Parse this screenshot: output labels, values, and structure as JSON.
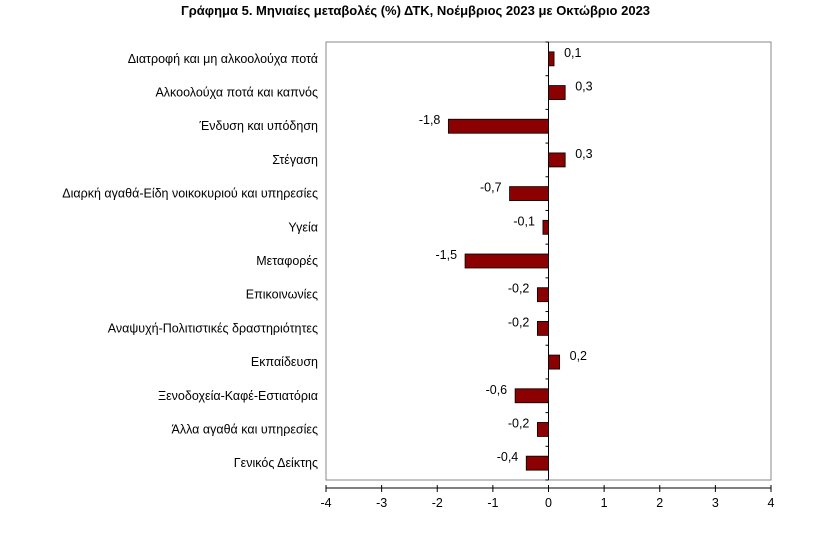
{
  "chart_data": {
    "type": "bar",
    "orientation": "horizontal",
    "title": "Γράφημα 5. Μηνιαίες μεταβολές (%) ΔΤΚ, Νοέμβριος 2023 με Οκτώβριο 2023",
    "categories": [
      "Διατροφή και μη αλκοολούχα ποτά",
      "Αλκοολούχα ποτά και καπνός",
      "Ένδυση και υπόδηση",
      "Στέγαση",
      "Διαρκή αγαθά-Είδη νοικοκυριού και υπηρεσίες",
      "Υγεία",
      "Μεταφορές",
      "Επικοινωνίες",
      "Αναψυχή-Πολιτιστικές δραστηριότητες",
      "Εκπαίδευση",
      "Ξενοδοχεία-Καφέ-Εστιατόρια",
      "Άλλα αγαθά και υπηρεσίες",
      "Γενικός Δείκτης"
    ],
    "values": [
      0.1,
      0.3,
      -1.8,
      0.3,
      -0.7,
      -0.1,
      -1.5,
      -0.2,
      -0.2,
      0.2,
      -0.6,
      -0.2,
      -0.4
    ],
    "value_labels": [
      "0,1",
      "0,3",
      "-1,8",
      "0,3",
      "-0,7",
      "-0,1",
      "-1,5",
      "-0,2",
      "-0,2",
      "0,2",
      "-0,6",
      "-0,2",
      "-0,4"
    ],
    "xlim": [
      -4,
      4
    ],
    "xticks": [
      -4,
      -3,
      -2,
      -1,
      0,
      1,
      2,
      3,
      4
    ],
    "xtick_labels": [
      "-4",
      "-3",
      "-2",
      "-1",
      "0",
      "1",
      "2",
      "3",
      "4"
    ],
    "grid": false,
    "legend": "none",
    "bar_color": "#8b0000",
    "bar_edge_color": "#000000",
    "plot_border_color": "#888888"
  }
}
